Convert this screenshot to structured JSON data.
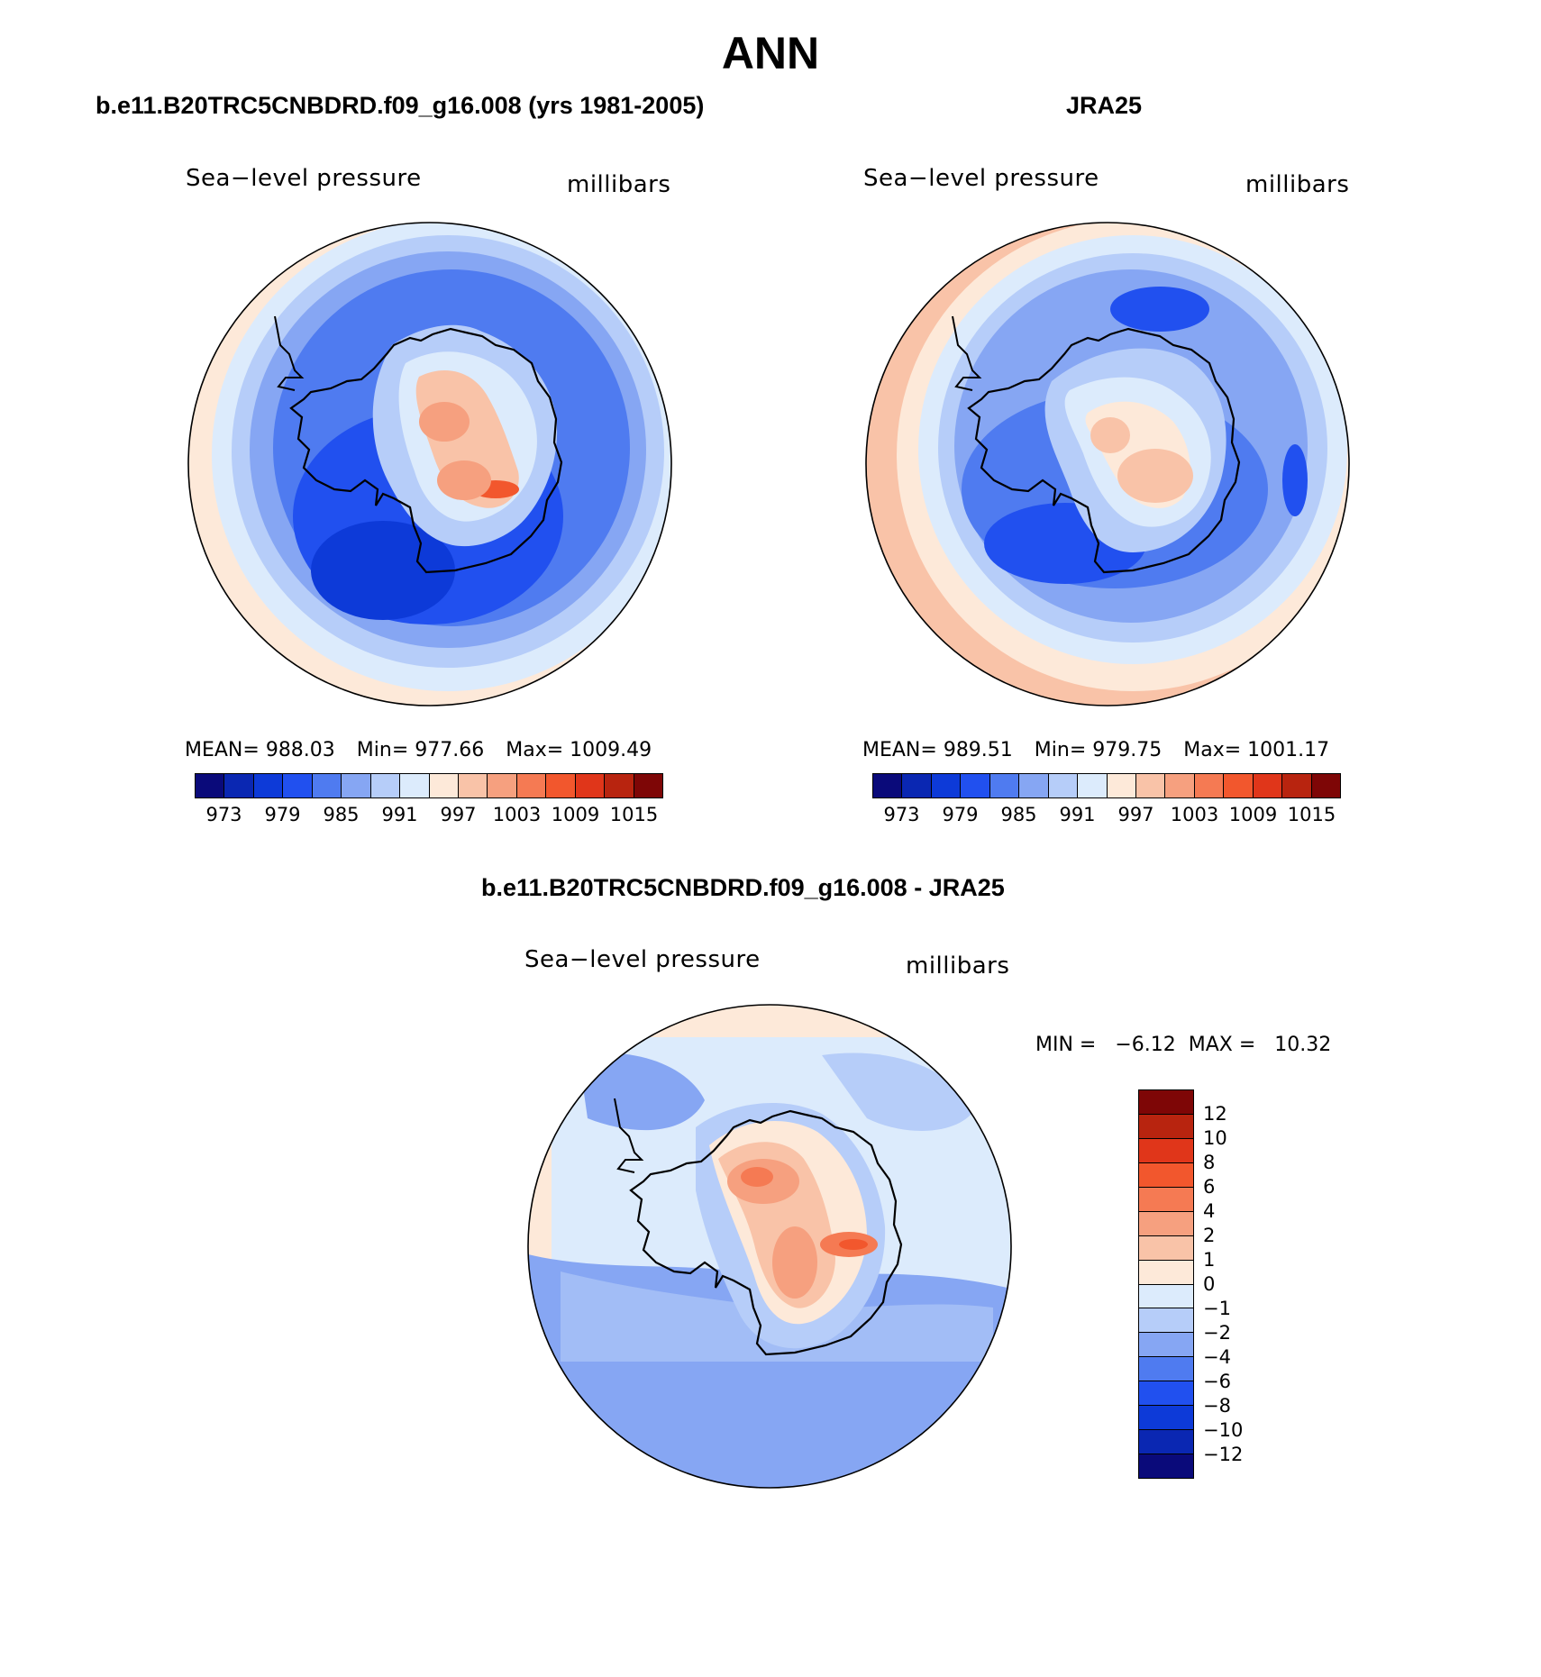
{
  "figure_title": "ANN",
  "panel_left": {
    "title": "b.e11.B20TRC5CNBDRD.f09_g16.008 (yrs 1981-2005)",
    "variable": "Sea−level pressure",
    "units": "millibars",
    "stats": {
      "mean": "MEAN= 988.03",
      "min": "Min= 977.66",
      "max": "Max= 1009.49"
    }
  },
  "panel_right": {
    "title": "JRA25",
    "variable": "Sea−level pressure",
    "units": "millibars",
    "stats": {
      "mean": "MEAN= 989.51",
      "min": "Min= 979.75",
      "max": "Max= 1001.17"
    }
  },
  "panel_diff": {
    "title": "b.e11.B20TRC5CNBDRD.f09_g16.008 - JRA25",
    "variable": "Sea−level pressure",
    "units": "millibars",
    "minmax": "MIN =   −6.12  MAX =   10.32"
  },
  "colorbar_abs": {
    "colors": [
      "#0a0a7a",
      "#0a27b2",
      "#0d3ad8",
      "#2150ef",
      "#4f7bf0",
      "#86a6f3",
      "#b6cdf9",
      "#dcebfc",
      "#fde9d9",
      "#f9c3a8",
      "#f6a07f",
      "#f57a53",
      "#f2572d",
      "#e0361a",
      "#b8240f",
      "#7e0606"
    ],
    "tick_labels": [
      "973",
      "979",
      "985",
      "991",
      "997",
      "1003",
      "1009",
      "1015"
    ]
  },
  "colorbar_diff": {
    "colors_top_to_bottom": [
      "#7e0606",
      "#b8240f",
      "#e0361a",
      "#f2572d",
      "#f57a53",
      "#f6a07f",
      "#f9c3a8",
      "#fde9d9",
      "#dcebfc",
      "#b6cdf9",
      "#86a6f3",
      "#4f7bf0",
      "#2150ef",
      "#0d3ad8",
      "#0a27b2",
      "#0a0a7a"
    ],
    "tick_labels_top_to_bottom": [
      "12",
      "10",
      "8",
      "6",
      "4",
      "2",
      "1",
      "0",
      "−1",
      "−2",
      "−4",
      "−6",
      "−8",
      "−10",
      "−12"
    ]
  },
  "chart_data": [
    {
      "type": "heatmap",
      "title": "b.e11.B20TRC5CNBDRD.f09_g16.008 (yrs 1981-2005)",
      "variable": "Sea-level pressure",
      "units": "millibars",
      "projection": "south polar stereographic",
      "mean": 988.03,
      "min": 977.66,
      "max": 1009.49,
      "contour_levels": [
        973,
        976,
        979,
        982,
        985,
        988,
        991,
        994,
        997,
        1000,
        1003,
        1006,
        1009,
        1012,
        1015
      ]
    },
    {
      "type": "heatmap",
      "title": "JRA25",
      "variable": "Sea-level pressure",
      "units": "millibars",
      "projection": "south polar stereographic",
      "mean": 989.51,
      "min": 979.75,
      "max": 1001.17,
      "contour_levels": [
        973,
        976,
        979,
        982,
        985,
        988,
        991,
        994,
        997,
        1000,
        1003,
        1006,
        1009,
        1012,
        1015
      ]
    },
    {
      "type": "heatmap",
      "title": "b.e11.B20TRC5CNBDRD.f09_g16.008 - JRA25",
      "variable": "Sea-level pressure",
      "units": "millibars",
      "projection": "south polar stereographic",
      "min": -6.12,
      "max": 10.32,
      "contour_levels": [
        -12,
        -10,
        -8,
        -6,
        -4,
        -2,
        -1,
        0,
        1,
        2,
        4,
        6,
        8,
        10,
        12
      ]
    }
  ]
}
